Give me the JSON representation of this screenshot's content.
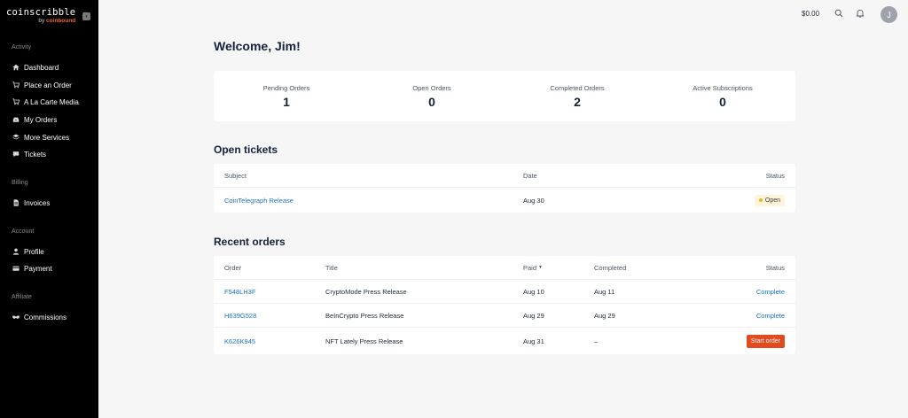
{
  "brand": {
    "name": "coinscribble",
    "by": "by",
    "company": "coinbound"
  },
  "sidebar": {
    "sections": [
      {
        "title": "Activity"
      },
      {
        "title": "Billing"
      },
      {
        "title": "Account"
      },
      {
        "title": "Affiliate"
      }
    ],
    "items": [
      {
        "label": "Dashboard",
        "icon": "home-icon"
      },
      {
        "label": "Place an Order",
        "icon": "cart-icon"
      },
      {
        "label": "A La Carte Media",
        "icon": "cart-icon"
      },
      {
        "label": "My Orders",
        "icon": "inbox-icon"
      },
      {
        "label": "More Services",
        "icon": "layers-icon"
      },
      {
        "label": "Tickets",
        "icon": "chat-icon"
      },
      {
        "label": "Invoices",
        "icon": "document-icon"
      },
      {
        "label": "Profile",
        "icon": "user-icon"
      },
      {
        "label": "Payment",
        "icon": "credit-card-icon"
      },
      {
        "label": "Commissions",
        "icon": "handshake-icon"
      }
    ]
  },
  "topbar": {
    "balance": "$0.00",
    "avatar_initial": "J"
  },
  "welcome": "Welcome, Jim!",
  "stats": [
    {
      "label": "Pending Orders",
      "value": "1"
    },
    {
      "label": "Open Orders",
      "value": "0"
    },
    {
      "label": "Completed Orders",
      "value": "2"
    },
    {
      "label": "Active Subscriptions",
      "value": "0"
    }
  ],
  "tickets": {
    "title": "Open tickets",
    "headers": {
      "subject": "Subject",
      "date": "Date",
      "status": "Status"
    },
    "rows": [
      {
        "subject": "CoinTelegraph Release",
        "date": "Aug 30",
        "status": "Open"
      }
    ]
  },
  "orders": {
    "title": "Recent orders",
    "headers": {
      "order": "Order",
      "title": "Title",
      "paid": "Paid",
      "completed": "Completed",
      "status": "Status"
    },
    "rows": [
      {
        "order": "F548LH3F",
        "title": "CryptoMode Press Release",
        "paid": "Aug 10",
        "completed": "Aug 11",
        "status": "Complete"
      },
      {
        "order": "H639G528",
        "title": "BeInCrypto Press Release",
        "paid": "Aug 29",
        "completed": "Aug 29",
        "status": "Complete"
      },
      {
        "order": "K626K945",
        "title": "NFT Lately Press Release",
        "paid": "Aug 31",
        "completed": "–",
        "status": "Start order"
      }
    ]
  },
  "colors": {
    "sidebar_bg": "#000000",
    "link": "#1a73c7",
    "accent": "#e34b1e",
    "open_badge": "#fdf4d9"
  }
}
